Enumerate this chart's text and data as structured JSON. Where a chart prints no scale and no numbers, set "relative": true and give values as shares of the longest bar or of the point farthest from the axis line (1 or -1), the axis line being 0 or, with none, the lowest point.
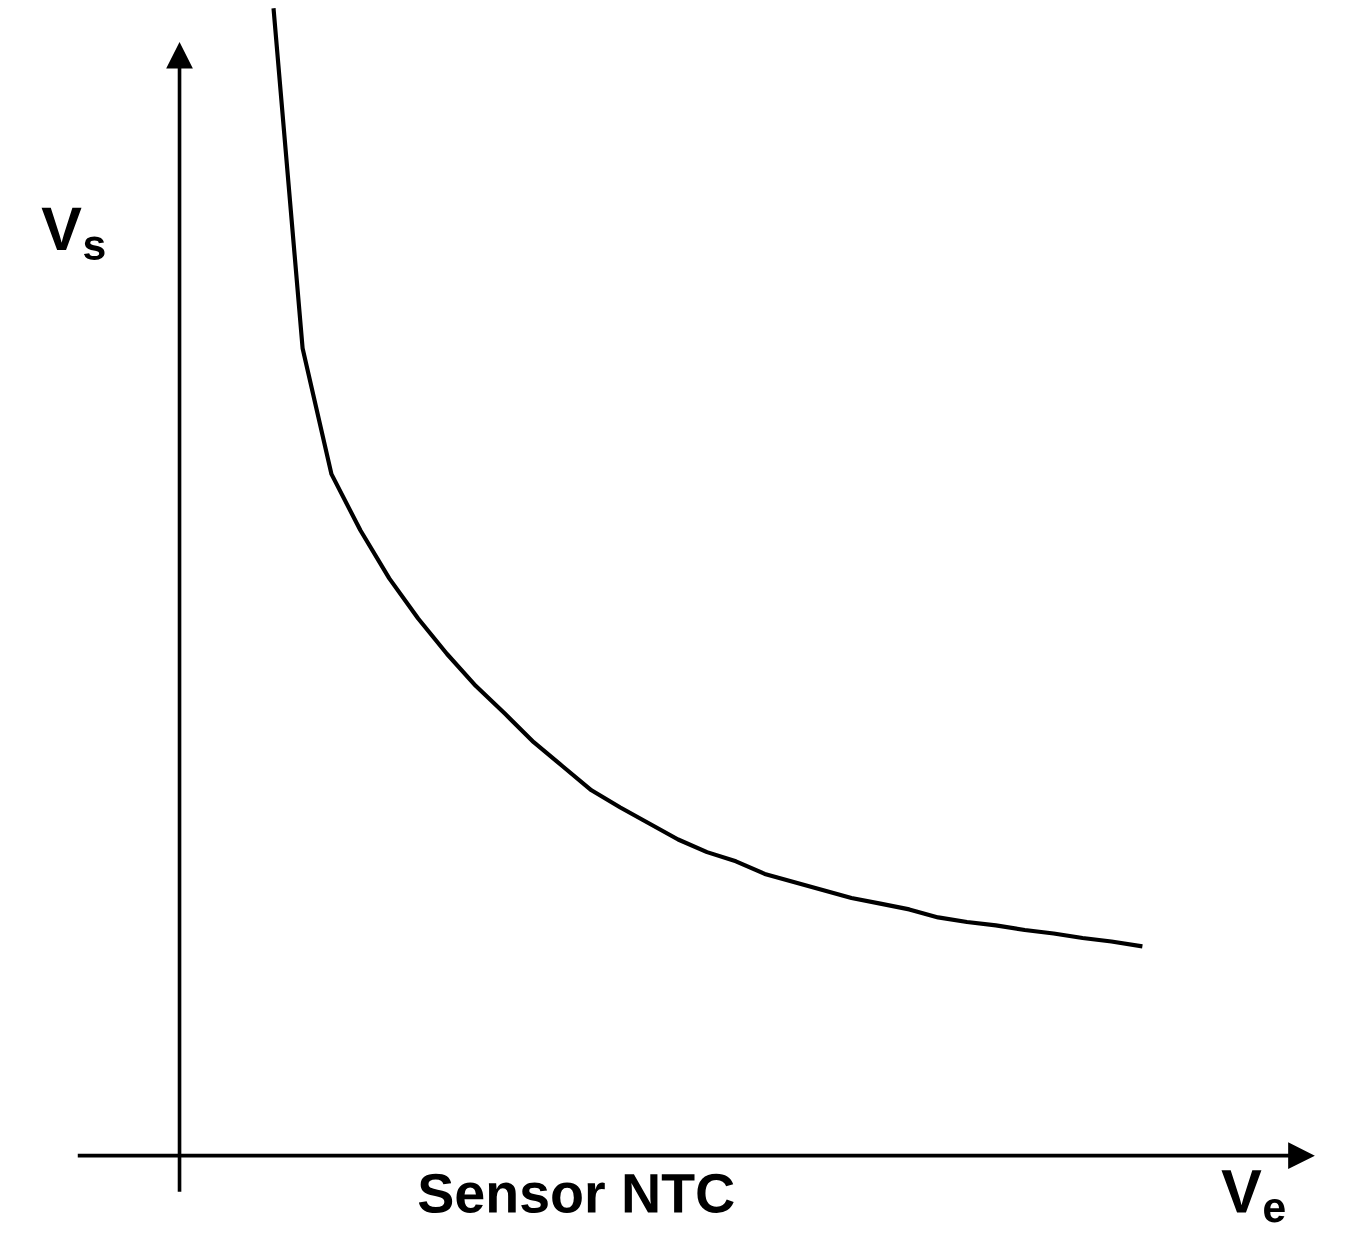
{
  "chart_data": {
    "type": "line",
    "title": "Sensor NTC",
    "xlabel": "V$_{e}$",
    "ylabel": "V$_{s}$",
    "relative": true,
    "tick_labels": false,
    "legend": false,
    "marker": "none",
    "line_style": "solid",
    "categories": [
      null,
      null,
      null,
      null,
      null,
      null,
      null,
      null,
      null,
      null,
      null,
      null,
      null,
      null,
      null,
      null,
      null,
      null,
      null,
      null,
      null,
      null,
      null,
      null,
      null,
      null,
      null,
      null,
      null,
      null,
      null
    ],
    "series": [
      {
        "color": "#000000",
        "values": [
          1.0,
          0.705,
          0.595,
          0.546,
          0.504,
          0.469,
          0.438,
          0.41,
          0.386,
          0.361,
          0.34,
          0.319,
          0.304,
          0.29,
          0.276,
          0.265,
          0.257,
          0.246,
          0.239,
          0.232,
          0.225,
          0.22,
          0.215,
          0.208,
          0.204,
          0.201,
          0.197,
          0.194,
          0.19,
          0.187,
          0.183
        ]
      }
    ]
  }
}
